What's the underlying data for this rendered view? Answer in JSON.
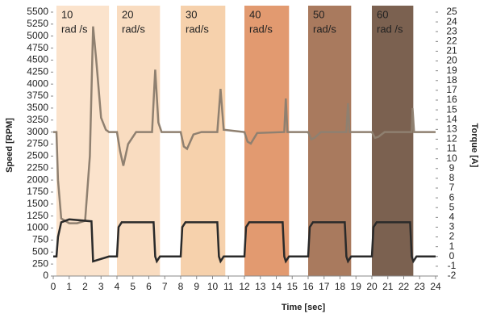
{
  "chart_data": {
    "type": "line",
    "xlabel": "Time [sec]",
    "ylabel": "Speed [RPM]",
    "y2label": "Torque [A]",
    "xlim": [
      0,
      24
    ],
    "xticks": [
      0,
      1,
      2,
      3,
      4,
      5,
      6,
      7,
      8,
      9,
      10,
      11,
      12,
      13,
      14,
      15,
      16,
      17,
      18,
      19,
      20,
      21,
      22,
      23,
      24
    ],
    "ylim": [
      0,
      5500
    ],
    "yticks": [
      0,
      250,
      500,
      750,
      1000,
      1250,
      1500,
      1750,
      2000,
      2250,
      2500,
      2750,
      3000,
      3250,
      3500,
      3750,
      4000,
      4250,
      4500,
      4750,
      5000,
      5250,
      5500
    ],
    "y2lim": [
      -2,
      25
    ],
    "y2ticks": [
      -2,
      -1,
      0,
      1,
      2,
      3,
      4,
      5,
      6,
      7,
      8,
      9,
      10,
      11,
      12,
      13,
      14,
      15,
      16,
      17,
      18,
      19,
      20,
      21,
      22,
      23,
      24,
      25
    ],
    "bands": [
      {
        "label": [
          "10",
          "rad /s"
        ],
        "x": [
          0.2,
          3.5
        ],
        "color": "#fbe3cc"
      },
      {
        "label": [
          "20",
          "rad/s"
        ],
        "x": [
          4.0,
          6.7
        ],
        "color": "#f9dcc0"
      },
      {
        "label": [
          "30",
          "rad/s"
        ],
        "x": [
          8.0,
          10.8
        ],
        "color": "#f6d1ac"
      },
      {
        "label": [
          "40",
          "rad/s"
        ],
        "x": [
          12.0,
          14.8
        ],
        "color": "#e29a70"
      },
      {
        "label": [
          "50",
          "rad/s"
        ],
        "x": [
          16.0,
          18.7
        ],
        "color": "#a97a5e"
      },
      {
        "label": [
          "60",
          "rad /s"
        ],
        "x": [
          20.0,
          22.6
        ],
        "color": "#7b6150"
      }
    ],
    "series": [
      {
        "color": "#8f8070",
        "x": [
          0,
          0.2,
          0.3,
          0.5,
          1.0,
          1.5,
          2.0,
          2.3,
          2.5,
          2.7,
          3.0,
          3.3,
          3.5,
          4.0,
          4.2,
          4.4,
          4.7,
          5.2,
          6.2,
          6.4,
          6.6,
          6.8,
          8.0,
          8.2,
          8.4,
          8.8,
          9.3,
          10.3,
          10.5,
          10.7,
          12.0,
          12.2,
          12.4,
          12.8,
          14.5,
          14.6,
          14.7,
          16.0,
          16.2,
          16.4,
          16.8,
          18.4,
          18.5,
          18.6,
          20.0,
          20.2,
          20.4,
          20.8,
          22.5,
          22.55,
          22.65,
          24
        ],
        "values": [
          3000,
          3000,
          2000,
          1200,
          1100,
          1100,
          1150,
          2500,
          5200,
          4500,
          3300,
          3050,
          3000,
          3000,
          2600,
          2300,
          2750,
          3000,
          3000,
          4300,
          3200,
          3000,
          3000,
          2700,
          2650,
          2950,
          3000,
          3000,
          3900,
          3050,
          3000,
          2800,
          2760,
          2980,
          3000,
          3700,
          3000,
          3000,
          2850,
          2880,
          3000,
          3000,
          3600,
          3000,
          3000,
          2880,
          2900,
          3000,
          3000,
          3500,
          3000,
          3000
        ]
      },
      {
        "color": "#2a2a2a",
        "axis": "y2",
        "x": [
          0,
          0.2,
          0.3,
          0.5,
          1.0,
          2.4,
          2.5,
          3.5,
          4.0,
          4.1,
          4.3,
          6.3,
          6.4,
          6.5,
          6.7,
          8.0,
          8.1,
          8.3,
          10.3,
          10.4,
          10.5,
          10.7,
          12.0,
          12.1,
          12.3,
          14.4,
          14.5,
          14.6,
          14.8,
          16.0,
          16.1,
          16.3,
          18.3,
          18.4,
          18.5,
          18.7,
          20.0,
          20.1,
          20.3,
          22.4,
          22.5,
          22.6,
          22.8,
          24
        ],
        "values": [
          0,
          0,
          2,
          3.5,
          3.8,
          3.6,
          -0.5,
          0,
          0,
          3,
          3.5,
          3.5,
          0,
          -0.5,
          0,
          0,
          3,
          3.5,
          3.5,
          0,
          -0.5,
          0,
          0,
          3,
          3.5,
          3.5,
          0,
          -0.5,
          0,
          0,
          3,
          3.5,
          3.5,
          0,
          -0.5,
          0,
          0,
          3,
          3.5,
          3.5,
          0,
          -0.5,
          0,
          0
        ]
      }
    ]
  }
}
